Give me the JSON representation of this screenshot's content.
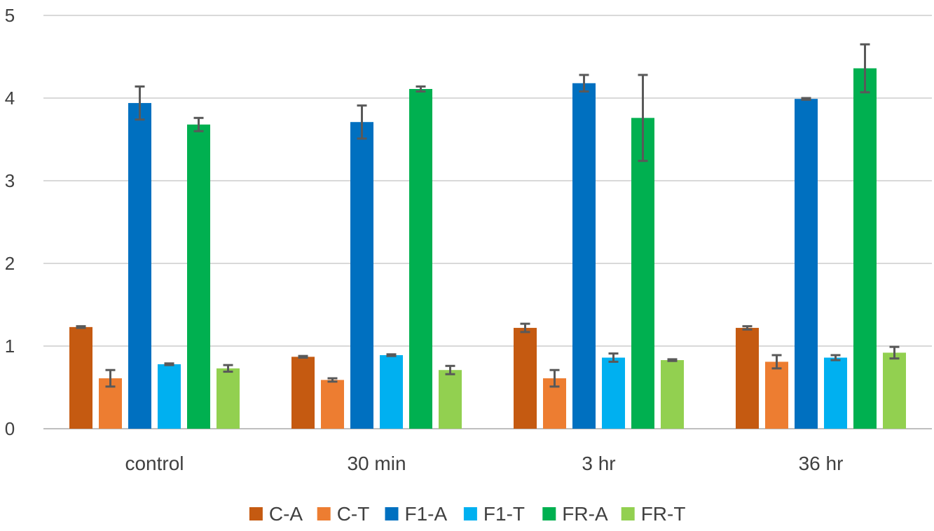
{
  "chart_data": {
    "type": "bar",
    "categories": [
      "control",
      "30 min",
      "3 hr",
      "36 hr"
    ],
    "series": [
      {
        "name": "C-A",
        "color": "#C55A11",
        "values": [
          1.23,
          0.87,
          1.22,
          1.22
        ],
        "errors": [
          0.01,
          0.01,
          0.05,
          0.02
        ]
      },
      {
        "name": "C-T",
        "color": "#ED7D31",
        "values": [
          0.61,
          0.59,
          0.61,
          0.81
        ],
        "errors": [
          0.1,
          0.02,
          0.1,
          0.08
        ]
      },
      {
        "name": "F1-A",
        "color": "#0070C0",
        "values": [
          3.94,
          3.71,
          4.18,
          3.99
        ],
        "errors": [
          0.2,
          0.2,
          0.1,
          0.01
        ]
      },
      {
        "name": "F1-T",
        "color": "#00B0F0",
        "values": [
          0.78,
          0.89,
          0.86,
          0.86
        ],
        "errors": [
          0.01,
          0.01,
          0.05,
          0.03
        ]
      },
      {
        "name": "FR-A",
        "color": "#00B050",
        "values": [
          3.68,
          4.11,
          3.76,
          4.36
        ],
        "errors": [
          0.08,
          0.03,
          0.52,
          0.29
        ]
      },
      {
        "name": "FR-T",
        "color": "#92D050",
        "values": [
          0.73,
          0.71,
          0.83,
          0.92
        ],
        "errors": [
          0.04,
          0.05,
          0.01,
          0.07
        ]
      }
    ],
    "yticks": [
      "0",
      "1",
      "2",
      "3",
      "4",
      "5"
    ],
    "ylim": [
      0,
      5
    ],
    "grid": true,
    "legend": "bottom",
    "error_bar_color": "#595959",
    "grid_color": "#D9D9D9",
    "axis_color": "#BFBFBF"
  }
}
